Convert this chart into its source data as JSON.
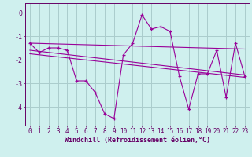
{
  "xlabel": "Windchill (Refroidissement éolien,°C)",
  "background_color": "#cff0ee",
  "grid_color": "#aacccc",
  "line_color": "#990099",
  "x": [
    0,
    1,
    2,
    3,
    4,
    5,
    6,
    7,
    8,
    9,
    10,
    11,
    12,
    13,
    14,
    15,
    16,
    17,
    18,
    19,
    20,
    21,
    22,
    23
  ],
  "line1": [
    -1.3,
    -1.7,
    -1.5,
    -1.5,
    -1.6,
    -2.9,
    -2.9,
    -3.4,
    -4.3,
    -4.5,
    -1.8,
    -1.3,
    -0.1,
    -0.7,
    -0.6,
    -0.8,
    -2.7,
    -4.1,
    -2.6,
    -2.6,
    -1.6,
    -3.6,
    -1.3,
    -2.7
  ],
  "line2_x": [
    0,
    23
  ],
  "line2_y": [
    -1.3,
    -1.55
  ],
  "line3_x": [
    0,
    23
  ],
  "line3_y": [
    -1.6,
    -2.65
  ],
  "line4_x": [
    0,
    23
  ],
  "line4_y": [
    -1.75,
    -2.75
  ],
  "yticks": [
    0,
    -1,
    -2,
    -3,
    -4
  ],
  "xticks": [
    0,
    1,
    2,
    3,
    4,
    5,
    6,
    7,
    8,
    9,
    10,
    11,
    12,
    13,
    14,
    15,
    16,
    17,
    18,
    19,
    20,
    21,
    22,
    23
  ],
  "ylim": [
    -4.8,
    0.4
  ],
  "xlim": [
    -0.5,
    23.5
  ],
  "tick_fontsize": 5.5,
  "xlabel_fontsize": 6.0,
  "text_color": "#660066"
}
